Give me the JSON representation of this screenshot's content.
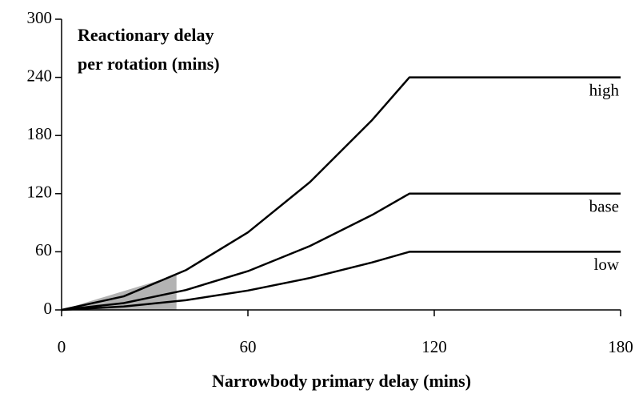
{
  "chart_data": {
    "type": "line",
    "ylabel_lines": [
      "Reactionary delay",
      "per rotation (mins)"
    ],
    "xlabel": "Narrowbody primary delay (mins)",
    "x": [
      0,
      20,
      40,
      60,
      80,
      100,
      112,
      180
    ],
    "series": [
      {
        "name": "high",
        "color": "#000000",
        "values": [
          0,
          14,
          41,
          80,
          132,
          196,
          240,
          240
        ]
      },
      {
        "name": "base",
        "color": "#000000",
        "values": [
          0,
          7,
          20.5,
          40,
          66,
          98,
          120,
          120
        ]
      },
      {
        "name": "low",
        "color": "#000000",
        "values": [
          0,
          3.5,
          10,
          20,
          33,
          49,
          60,
          60
        ]
      }
    ],
    "highlight": {
      "x": [
        0,
        37,
        37
      ],
      "y": [
        0,
        36,
        0
      ],
      "color": "#b3b3b3"
    },
    "xlim": [
      0,
      180
    ],
    "ylim": [
      0,
      300
    ],
    "xticks": [
      0,
      60,
      120,
      180
    ],
    "yticks": [
      0,
      60,
      120,
      180,
      240,
      300
    ],
    "grid": false
  }
}
